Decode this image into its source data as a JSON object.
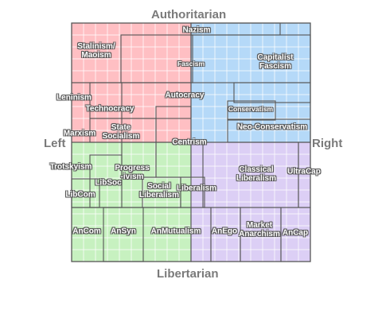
{
  "axes": {
    "top": "Authoritarian",
    "bottom": "Libertarian",
    "left": "Left",
    "right": "Right"
  },
  "colors": {
    "auth_left": "#ffbfc3",
    "auth_right": "#b5d9f8",
    "lib_left": "#c7f1c0",
    "lib_right": "#dccff5",
    "grid_line": "#ffffff",
    "border": "#555555",
    "axis_text": "#7a7a7a"
  },
  "ideologies": [
    {
      "id": "nazism",
      "label": "Nazism"
    },
    {
      "id": "stalinism-maoism",
      "label": "Stalinism/\nMaoism"
    },
    {
      "id": "fascism",
      "label": "Fascism"
    },
    {
      "id": "capitalist-fascism",
      "label": "Capitalist\nFascism"
    },
    {
      "id": "leninism",
      "label": "Leninism"
    },
    {
      "id": "technocracy",
      "label": "Technocracy"
    },
    {
      "id": "autocracy",
      "label": "Autocracy"
    },
    {
      "id": "conservatism",
      "label": "Conservatism"
    },
    {
      "id": "marxism",
      "label": "Marxism"
    },
    {
      "id": "state-socialism",
      "label": "State\nSocialism"
    },
    {
      "id": "neo-conservatism",
      "label": "Neo-Conservatism"
    },
    {
      "id": "centrism",
      "label": "Centrism"
    },
    {
      "id": "trotskyism",
      "label": "Trotskyism"
    },
    {
      "id": "progressivism",
      "label": "Progress\n-ivism"
    },
    {
      "id": "classical-liberalism",
      "label": "Classical\nLiberalism"
    },
    {
      "id": "ultracap",
      "label": "UltraCap"
    },
    {
      "id": "libsoc",
      "label": "LibSoc"
    },
    {
      "id": "social-liberalism",
      "label": "Social\nLiberalism"
    },
    {
      "id": "liberalism",
      "label": "Liberalism"
    },
    {
      "id": "libcom",
      "label": "LibCom"
    },
    {
      "id": "ancom",
      "label": "AnCom"
    },
    {
      "id": "ansyn",
      "label": "AnSyn"
    },
    {
      "id": "anmutualism",
      "label": "AnMutualism"
    },
    {
      "id": "anego",
      "label": "AnEgo"
    },
    {
      "id": "market-anarchism",
      "label": "Market\nAnarchism"
    },
    {
      "id": "ancap",
      "label": "AnCap"
    }
  ]
}
